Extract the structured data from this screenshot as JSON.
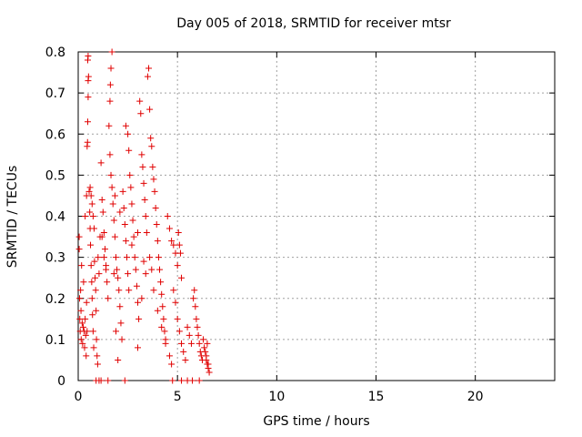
{
  "chart_data": {
    "type": "scatter",
    "title": "Day 005 of 2018, SRMTID for receiver mtsr",
    "xlabel": "GPS time / hours",
    "ylabel": "SRMTID / TECUs",
    "xlim": [
      0,
      24
    ],
    "ylim": [
      0,
      0.8
    ],
    "xticks": [
      0,
      5,
      10,
      15,
      20
    ],
    "yticks": [
      0,
      0.1,
      0.2,
      0.3,
      0.4,
      0.5,
      0.6,
      0.7,
      0.8
    ],
    "grid": true,
    "marker": "plus",
    "color": "#e00000",
    "series": [
      {
        "values": [
          [
            0.05,
            0.35
          ],
          [
            0.05,
            0.32
          ],
          [
            0.07,
            0.2
          ],
          [
            0.08,
            0.15
          ],
          [
            0.1,
            0.12
          ],
          [
            0.12,
            0.22
          ],
          [
            0.14,
            0.17
          ],
          [
            0.15,
            0.1
          ],
          [
            0.17,
            0.28
          ],
          [
            0.2,
            0.14
          ],
          [
            0.22,
            0.09
          ],
          [
            0.25,
            0.13
          ],
          [
            0.27,
            0.24
          ],
          [
            0.3,
            0.12
          ],
          [
            0.32,
            0.08
          ],
          [
            0.35,
            0.15
          ],
          [
            0.38,
            0.11
          ],
          [
            0.4,
            0.06
          ],
          [
            0.42,
            0.19
          ],
          [
            0.45,
            0.12
          ],
          [
            0.35,
            0.4
          ],
          [
            0.42,
            0.45
          ],
          [
            0.45,
            0.57
          ],
          [
            0.47,
            0.58
          ],
          [
            0.48,
            0.63
          ],
          [
            0.5,
            0.69
          ],
          [
            0.5,
            0.73
          ],
          [
            0.52,
            0.74
          ],
          [
            0.48,
            0.78
          ],
          [
            0.5,
            0.79
          ],
          [
            0.55,
            0.46
          ],
          [
            0.58,
            0.41
          ],
          [
            0.6,
            0.37
          ],
          [
            0.62,
            0.33
          ],
          [
            0.65,
            0.28
          ],
          [
            0.68,
            0.24
          ],
          [
            0.7,
            0.2
          ],
          [
            0.72,
            0.16
          ],
          [
            0.75,
            0.12
          ],
          [
            0.78,
            0.08
          ],
          [
            0.6,
            0.47
          ],
          [
            0.65,
            0.45
          ],
          [
            0.7,
            0.43
          ],
          [
            0.75,
            0.4
          ],
          [
            0.8,
            0.37
          ],
          [
            0.82,
            0.29
          ],
          [
            0.85,
            0.25
          ],
          [
            0.88,
            0.22
          ],
          [
            0.9,
            0.17
          ],
          [
            0.92,
            0.1
          ],
          [
            0.95,
            0.06
          ],
          [
            0.98,
            0.04
          ],
          [
            1.0,
            0.3
          ],
          [
            1.05,
            0.26
          ],
          [
            1.1,
            0.35
          ],
          [
            1.15,
            0.53
          ],
          [
            1.2,
            0.44
          ],
          [
            1.25,
            0.41
          ],
          [
            1.3,
            0.36
          ],
          [
            1.35,
            0.32
          ],
          [
            1.4,
            0.28
          ],
          [
            1.45,
            0.24
          ],
          [
            1.5,
            0.2
          ],
          [
            1.55,
            0.62
          ],
          [
            1.6,
            0.68
          ],
          [
            1.62,
            0.72
          ],
          [
            1.65,
            0.76
          ],
          [
            1.7,
            0.8
          ],
          [
            1.6,
            0.55
          ],
          [
            1.65,
            0.5
          ],
          [
            1.7,
            0.47
          ],
          [
            1.75,
            0.43
          ],
          [
            1.8,
            0.39
          ],
          [
            1.85,
            0.35
          ],
          [
            1.9,
            0.3
          ],
          [
            1.95,
            0.27
          ],
          [
            2.0,
            0.25
          ],
          [
            2.05,
            0.22
          ],
          [
            2.1,
            0.18
          ],
          [
            2.15,
            0.14
          ],
          [
            2.2,
            0.1
          ],
          [
            2.0,
            0.05
          ],
          [
            1.9,
            0.12
          ],
          [
            2.25,
            0.46
          ],
          [
            2.3,
            0.42
          ],
          [
            2.35,
            0.38
          ],
          [
            2.4,
            0.34
          ],
          [
            2.45,
            0.3
          ],
          [
            2.5,
            0.26
          ],
          [
            2.55,
            0.22
          ],
          [
            2.4,
            0.62
          ],
          [
            2.5,
            0.6
          ],
          [
            2.55,
            0.56
          ],
          [
            2.6,
            0.5
          ],
          [
            2.65,
            0.47
          ],
          [
            2.7,
            0.43
          ],
          [
            2.75,
            0.39
          ],
          [
            2.8,
            0.35
          ],
          [
            2.85,
            0.3
          ],
          [
            2.9,
            0.27
          ],
          [
            2.95,
            0.23
          ],
          [
            3.0,
            0.19
          ],
          [
            3.05,
            0.15
          ],
          [
            3.1,
            0.68
          ],
          [
            3.15,
            0.65
          ],
          [
            3.2,
            0.55
          ],
          [
            3.25,
            0.52
          ],
          [
            3.3,
            0.48
          ],
          [
            3.35,
            0.44
          ],
          [
            3.4,
            0.4
          ],
          [
            3.45,
            0.36
          ],
          [
            3.5,
            0.74
          ],
          [
            3.55,
            0.76
          ],
          [
            3.6,
            0.66
          ],
          [
            3.65,
            0.59
          ],
          [
            3.7,
            0.57
          ],
          [
            3.75,
            0.52
          ],
          [
            3.8,
            0.49
          ],
          [
            3.85,
            0.46
          ],
          [
            3.9,
            0.42
          ],
          [
            3.95,
            0.38
          ],
          [
            4.0,
            0.34
          ],
          [
            4.05,
            0.3
          ],
          [
            4.1,
            0.27
          ],
          [
            4.15,
            0.24
          ],
          [
            4.2,
            0.21
          ],
          [
            4.25,
            0.18
          ],
          [
            4.3,
            0.15
          ],
          [
            4.35,
            0.12
          ],
          [
            4.4,
            0.09
          ],
          [
            3.0,
            0.08
          ],
          [
            3.2,
            0.2
          ],
          [
            3.4,
            0.26
          ],
          [
            3.6,
            0.3
          ],
          [
            3.8,
            0.22
          ],
          [
            4.0,
            0.17
          ],
          [
            4.2,
            0.13
          ],
          [
            4.4,
            0.1
          ],
          [
            4.6,
            0.06
          ],
          [
            4.7,
            0.04
          ],
          [
            4.5,
            0.4
          ],
          [
            4.6,
            0.37
          ],
          [
            4.7,
            0.34
          ],
          [
            4.8,
            0.33
          ],
          [
            4.9,
            0.31
          ],
          [
            5.0,
            0.28
          ],
          [
            5.05,
            0.36
          ],
          [
            5.1,
            0.33
          ],
          [
            5.15,
            0.31
          ],
          [
            5.2,
            0.25
          ],
          [
            4.8,
            0.22
          ],
          [
            4.9,
            0.19
          ],
          [
            5.0,
            0.15
          ],
          [
            5.1,
            0.12
          ],
          [
            5.2,
            0.09
          ],
          [
            5.3,
            0.07
          ],
          [
            5.4,
            0.05
          ],
          [
            5.5,
            0.13
          ],
          [
            5.6,
            0.11
          ],
          [
            5.7,
            0.09
          ],
          [
            5.8,
            0.2
          ],
          [
            5.85,
            0.22
          ],
          [
            5.9,
            0.18
          ],
          [
            5.95,
            0.15
          ],
          [
            6.0,
            0.13
          ],
          [
            6.05,
            0.11
          ],
          [
            6.1,
            0.09
          ],
          [
            6.15,
            0.07
          ],
          [
            6.2,
            0.06
          ],
          [
            6.25,
            0.05
          ],
          [
            6.3,
            0.1
          ],
          [
            6.35,
            0.08
          ],
          [
            6.4,
            0.07
          ],
          [
            6.45,
            0.05
          ],
          [
            6.5,
            0.04
          ],
          [
            6.55,
            0.03
          ],
          [
            6.6,
            0.02
          ],
          [
            6.5,
            0.09
          ],
          [
            6.45,
            0.06
          ],
          [
            6.55,
            0.04
          ],
          [
            0.9,
            0.0
          ],
          [
            1.05,
            0.0
          ],
          [
            1.15,
            0.0
          ],
          [
            1.5,
            0.0
          ],
          [
            2.35,
            0.0
          ],
          [
            4.75,
            0.0
          ],
          [
            5.2,
            0.0
          ],
          [
            5.5,
            0.0
          ],
          [
            5.75,
            0.0
          ],
          [
            6.1,
            0.0
          ],
          [
            1.2,
            0.35
          ],
          [
            1.3,
            0.3
          ],
          [
            1.4,
            0.27
          ],
          [
            1.8,
            0.26
          ],
          [
            1.85,
            0.45
          ],
          [
            2.1,
            0.41
          ],
          [
            2.7,
            0.33
          ],
          [
            3.0,
            0.36
          ],
          [
            3.3,
            0.29
          ],
          [
            3.7,
            0.27
          ]
        ]
      }
    ]
  }
}
